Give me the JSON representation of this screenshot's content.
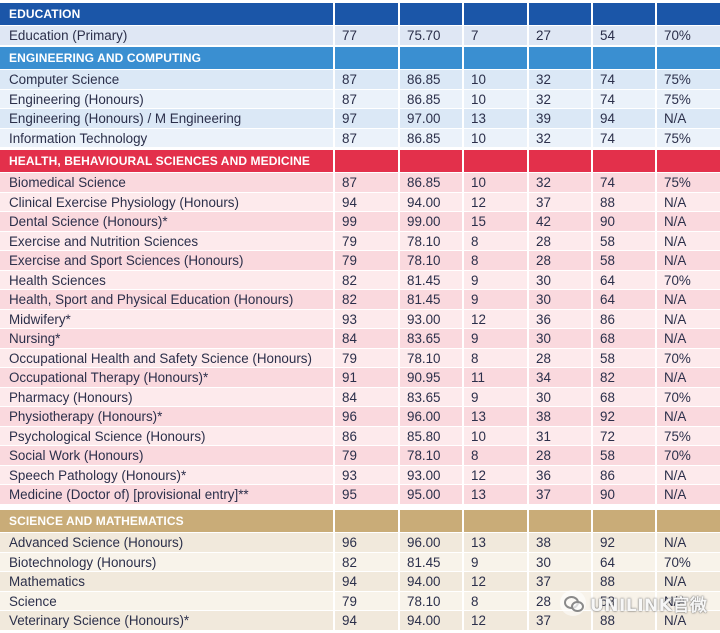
{
  "columns": [
    "",
    "",
    "",
    "",
    "",
    "",
    ""
  ],
  "sections": [
    {
      "title": "EDUCATION",
      "header_color": "#1b56a8",
      "row_colors": [
        "#dfe7f4",
        "#eef2f9"
      ],
      "text_color": "#2b2f4a",
      "rows": [
        [
          "Education (Primary)",
          "77",
          "75.70",
          "7",
          "27",
          "54",
          "70%"
        ]
      ]
    },
    {
      "title": "ENGINEERING AND COMPUTING",
      "header_color": "#3a8fd1",
      "row_colors": [
        "#dbe8f6",
        "#ebf2fa"
      ],
      "text_color": "#2b2f4a",
      "rows": [
        [
          "Computer Science",
          "87",
          "86.85",
          "10",
          "32",
          "74",
          "75%"
        ],
        [
          "Engineering (Honours)",
          "87",
          "86.85",
          "10",
          "32",
          "74",
          "75%"
        ],
        [
          "Engineering (Honours) / M Engineering",
          "97",
          "97.00",
          "13",
          "39",
          "94",
          "N/A"
        ],
        [
          "Information Technology",
          "87",
          "86.85",
          "10",
          "32",
          "74",
          "75%"
        ]
      ]
    },
    {
      "title": "HEALTH, BEHAVIOURAL SCIENCES AND MEDICINE",
      "header_color": "#e3304b",
      "row_colors": [
        "#fad9de",
        "#fdeaec"
      ],
      "text_color": "#2b2f4a",
      "rows": [
        [
          "Biomedical Science",
          "87",
          "86.85",
          "10",
          "32",
          "74",
          "75%"
        ],
        [
          "Clinical Exercise Physiology (Honours)",
          "94",
          "94.00",
          "12",
          "37",
          "88",
          "N/A"
        ],
        [
          "Dental Science (Honours)*",
          "99",
          "99.00",
          "15",
          "42",
          "90",
          "N/A"
        ],
        [
          "Exercise and Nutrition Sciences",
          "79",
          "78.10",
          "8",
          "28",
          "58",
          "N/A"
        ],
        [
          "Exercise and Sport Sciences (Honours)",
          "79",
          "78.10",
          "8",
          "28",
          "58",
          "N/A"
        ],
        [
          "Health Sciences",
          "82",
          "81.45",
          "9",
          "30",
          "64",
          "70%"
        ],
        [
          "Health, Sport and Physical Education (Honours)",
          "82",
          "81.45",
          "9",
          "30",
          "64",
          "N/A"
        ],
        [
          "Midwifery*",
          "93",
          "93.00",
          "12",
          "36",
          "86",
          "N/A"
        ],
        [
          "Nursing*",
          "84",
          "83.65",
          "9",
          "30",
          "68",
          "N/A"
        ],
        [
          "Occupational Health and Safety Science (Honours)",
          "79",
          "78.10",
          "8",
          "28",
          "58",
          "70%"
        ],
        [
          "Occupational Therapy (Honours)*",
          "91",
          "90.95",
          "11",
          "34",
          "82",
          "N/A"
        ],
        [
          "Pharmacy (Honours)",
          "84",
          "83.65",
          "9",
          "30",
          "68",
          "70%"
        ],
        [
          "Physiotherapy (Honours)*",
          "96",
          "96.00",
          "13",
          "38",
          "92",
          "N/A"
        ],
        [
          "Psychological Science (Honours)",
          "86",
          "85.80",
          "10",
          "31",
          "72",
          "75%"
        ],
        [
          "Social Work (Honours)",
          "79",
          "78.10",
          "8",
          "28",
          "58",
          "70%"
        ],
        [
          "Speech Pathology (Honours)*",
          "93",
          "93.00",
          "12",
          "36",
          "86",
          "N/A"
        ],
        [
          "Medicine (Doctor of) [provisional entry]**",
          "95",
          "95.00",
          "13",
          "37",
          "90",
          "N/A"
        ]
      ]
    },
    {
      "title": "SCIENCE AND MATHEMATICS",
      "header_color": "#c9ac78",
      "row_colors": [
        "#f1e9dc",
        "#f8f3ea"
      ],
      "text_color": "#2b2f4a",
      "rows": [
        [
          "Advanced Science (Honours)",
          "96",
          "96.00",
          "13",
          "38",
          "92",
          "N/A"
        ],
        [
          "Biotechnology (Honours)",
          "82",
          "81.45",
          "9",
          "30",
          "64",
          "70%"
        ],
        [
          "Mathematics",
          "94",
          "94.00",
          "12",
          "37",
          "88",
          "N/A"
        ],
        [
          "Science",
          "79",
          "78.10",
          "8",
          "28",
          "58",
          "N/A"
        ],
        [
          "Veterinary Science (Honours)*",
          "94",
          "94.00",
          "12",
          "37",
          "88",
          "N/A"
        ]
      ]
    }
  ],
  "watermark": {
    "text": "UNILINK官微",
    "icon": "wechat-icon"
  }
}
